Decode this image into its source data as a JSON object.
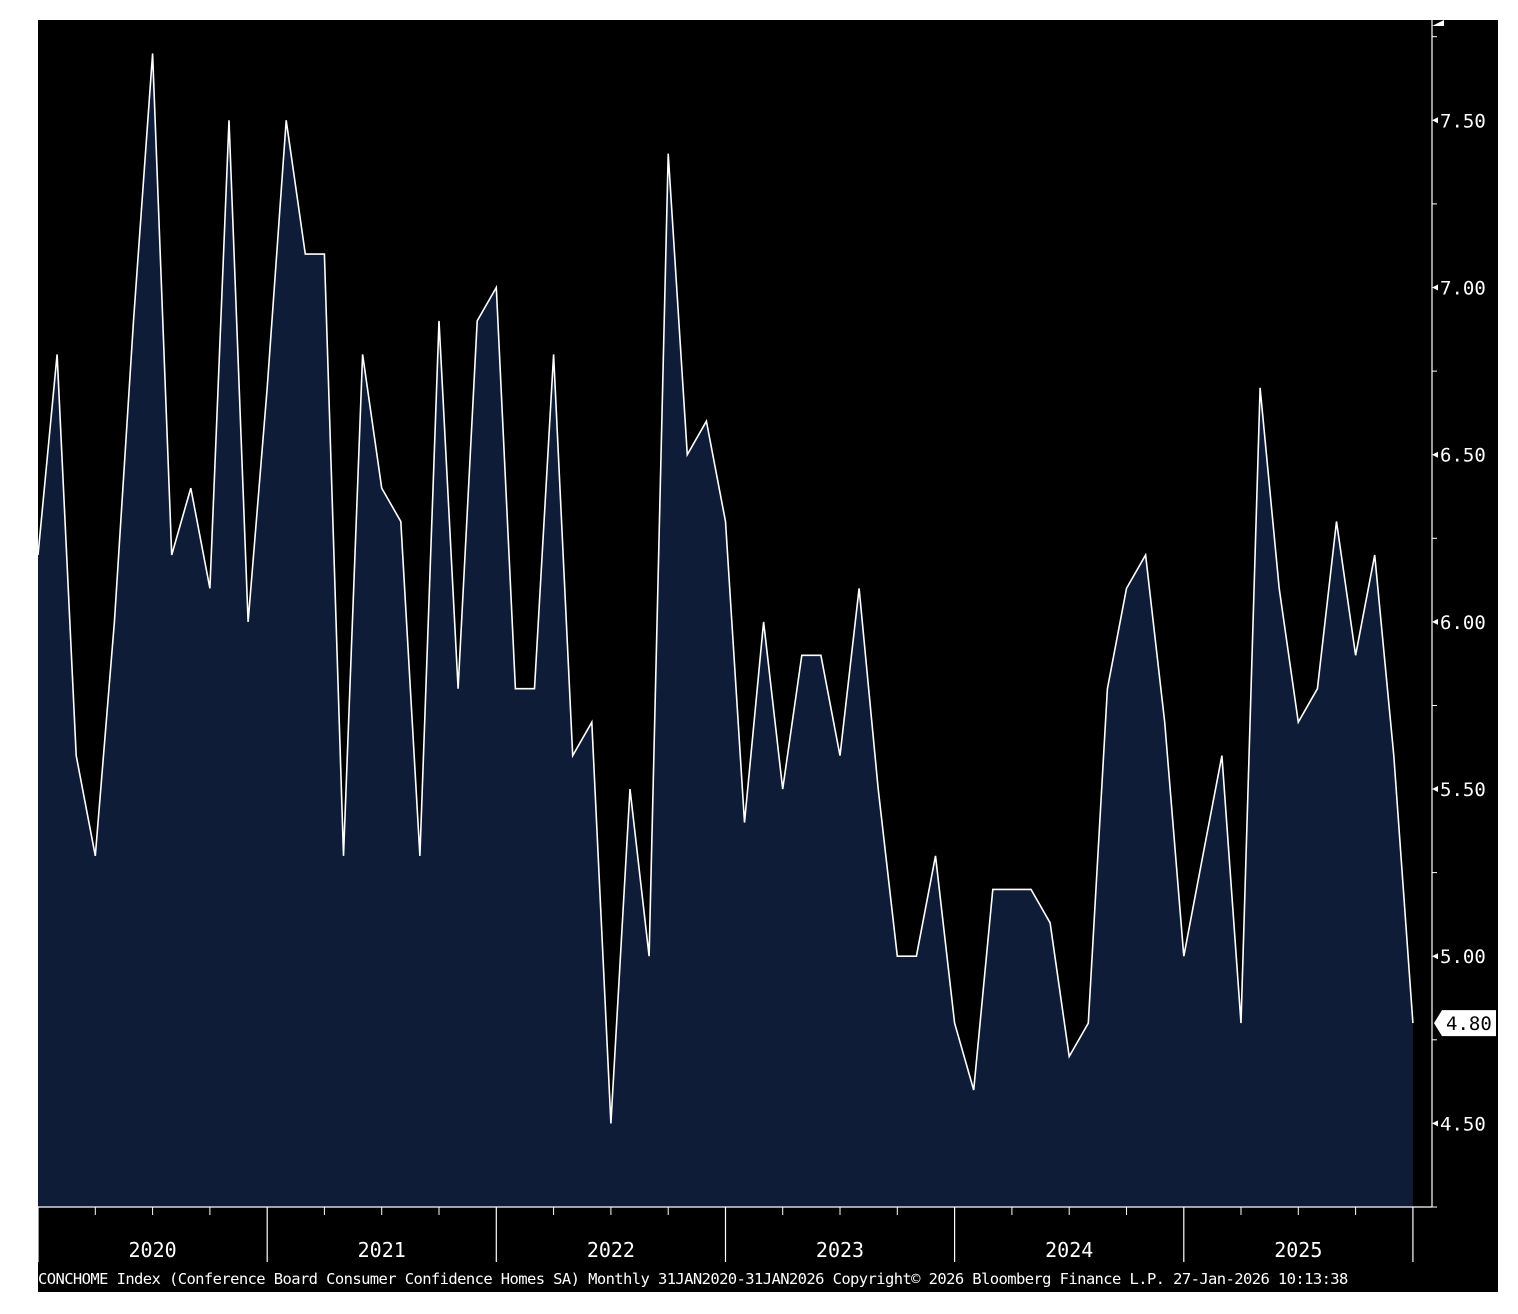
{
  "chart_data": {
    "type": "area",
    "title": "",
    "xlabel": "",
    "ylabel": "",
    "x_tick_labels": [
      "2020",
      "2021",
      "2022",
      "2023",
      "2024",
      "2025"
    ],
    "y_ticks": [
      4.5,
      5.0,
      5.5,
      6.0,
      6.5,
      7.0,
      7.5
    ],
    "y_tick_labels": [
      "4.50",
      "5.00",
      "5.50",
      "6.00",
      "6.50",
      "7.00",
      "7.50"
    ],
    "ylim": [
      4.25,
      7.8
    ],
    "xlim": [
      "2020-01",
      "2026-02"
    ],
    "last_value_label": "4.80",
    "grid": false,
    "legend": "none",
    "colors": {
      "background": "#000000",
      "area_fill": "#0e1c38",
      "line": "#ffffff"
    },
    "series": [
      {
        "x": [
          "2020-01",
          "2020-02",
          "2020-03",
          "2020-04",
          "2020-05",
          "2020-06",
          "2020-07",
          "2020-08",
          "2020-09",
          "2020-10",
          "2020-11",
          "2020-12",
          "2021-01",
          "2021-02",
          "2021-03",
          "2021-04",
          "2021-05",
          "2021-06",
          "2021-07",
          "2021-08",
          "2021-09",
          "2021-10",
          "2021-11",
          "2021-12",
          "2022-01",
          "2022-02",
          "2022-03",
          "2022-04",
          "2022-05",
          "2022-06",
          "2022-07",
          "2022-08",
          "2022-09",
          "2022-10",
          "2022-11",
          "2022-12",
          "2023-01",
          "2023-02",
          "2023-03",
          "2023-04",
          "2023-05",
          "2023-06",
          "2023-07",
          "2023-08",
          "2023-09",
          "2023-10",
          "2023-11",
          "2023-12",
          "2024-01",
          "2024-02",
          "2024-03",
          "2024-04",
          "2024-05",
          "2024-06",
          "2024-07",
          "2024-08",
          "2024-09",
          "2024-10",
          "2024-11",
          "2024-12",
          "2025-01",
          "2025-02",
          "2025-03",
          "2025-04",
          "2025-05",
          "2025-06",
          "2025-07",
          "2025-08",
          "2025-09",
          "2025-10",
          "2025-11",
          "2025-12",
          "2026-01"
        ],
        "values": [
          6.2,
          6.8,
          5.6,
          5.3,
          6.0,
          6.9,
          7.7,
          6.2,
          6.4,
          6.1,
          7.5,
          6.0,
          6.7,
          7.5,
          7.1,
          7.1,
          5.3,
          6.8,
          6.4,
          6.3,
          5.3,
          6.9,
          5.8,
          6.9,
          7.0,
          5.8,
          5.8,
          6.8,
          5.6,
          5.7,
          4.5,
          5.5,
          5.0,
          7.4,
          6.5,
          6.6,
          6.3,
          5.4,
          6.0,
          5.5,
          5.9,
          5.9,
          5.6,
          6.1,
          5.5,
          5.0,
          5.0,
          5.3,
          4.8,
          4.6,
          5.2,
          5.2,
          5.2,
          5.1,
          4.7,
          4.8,
          5.8,
          6.1,
          6.2,
          5.7,
          5.0,
          5.3,
          5.6,
          4.8,
          6.7,
          6.1,
          5.7,
          5.8,
          6.3,
          5.9,
          6.2,
          5.6,
          4.8
        ]
      }
    ]
  },
  "footer": {
    "caption": "CONCHOME Index (Conference Board Consumer Confidence Homes SA) Monthly 31JAN2020-31JAN2026  Copyright© 2026 Bloomberg Finance L.P.  27-Jan-2026 10:13:38"
  }
}
